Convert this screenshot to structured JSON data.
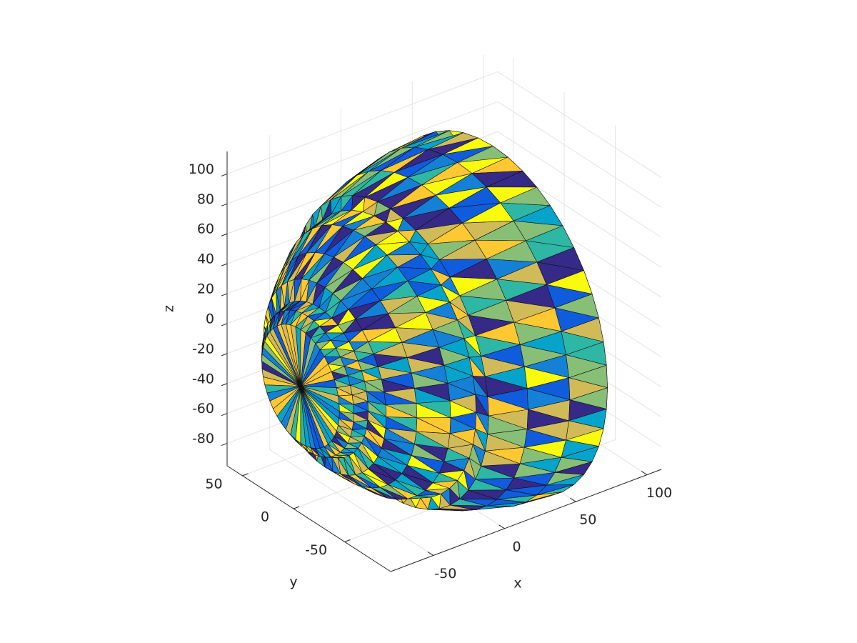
{
  "chart_data": {
    "type": "trisurf3d",
    "x_label": "x",
    "y_label": "y",
    "z_label": "z",
    "xlim": [
      -80,
      110
    ],
    "ylim": [
      -95,
      65
    ],
    "zlim": [
      -95,
      115
    ],
    "xticks": [
      -50,
      0,
      50,
      100
    ],
    "yticks": [
      -50,
      0,
      50
    ],
    "zticks": [
      -80,
      -60,
      -40,
      -20,
      0,
      20,
      40,
      60,
      80,
      100
    ],
    "grid": true,
    "colormap": [
      "#352a87",
      "#0f5cdd",
      "#1481d6",
      "#06a4ca",
      "#2eb7a4",
      "#87bf77",
      "#d1bb59",
      "#fec832",
      "#f9fb0e"
    ]
  }
}
